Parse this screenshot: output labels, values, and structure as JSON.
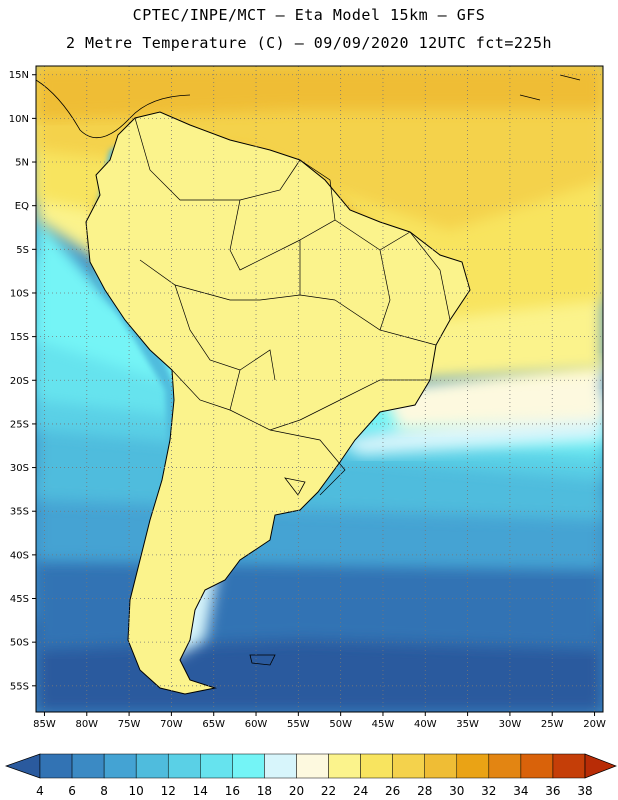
{
  "header": {
    "line1": "CPTEC/INPE/MCT –  Eta Model 15km – GFS",
    "line2": "2 Metre Temperature (C) – 09/09/2020 12UTC fct=225h"
  },
  "map": {
    "lat_ticks": [
      "15N",
      "10N",
      "5N",
      "EQ",
      "5S",
      "10S",
      "15S",
      "20S",
      "25S",
      "30S",
      "35S",
      "40S",
      "45S",
      "50S",
      "55S"
    ],
    "lon_ticks": [
      "85W",
      "80W",
      "75W",
      "70W",
      "65W",
      "60W",
      "55W",
      "50W",
      "45W",
      "40W",
      "35W",
      "30W",
      "25W",
      "20W"
    ],
    "extent": {
      "lon": [
        -86,
        -19
      ],
      "lat": [
        -58,
        16
      ]
    },
    "grid": "dotted"
  },
  "colorbar": {
    "labels": [
      "4",
      "6",
      "8",
      "10",
      "12",
      "14",
      "16",
      "18",
      "20",
      "22",
      "24",
      "26",
      "28",
      "30",
      "32",
      "34",
      "36",
      "38"
    ],
    "colors": [
      "#2a5a9e",
      "#3273b4",
      "#3b8ac4",
      "#44a3d3",
      "#4fbcdd",
      "#5ad0e6",
      "#66e3ee",
      "#74f4f6",
      "#d7f5fb",
      "#fdf9df",
      "#fbf38c",
      "#f8e45f",
      "#f4d24c",
      "#efbd35",
      "#eaa315",
      "#e38512",
      "#d9620a",
      "#c53e08",
      "#b82c06"
    ]
  }
}
